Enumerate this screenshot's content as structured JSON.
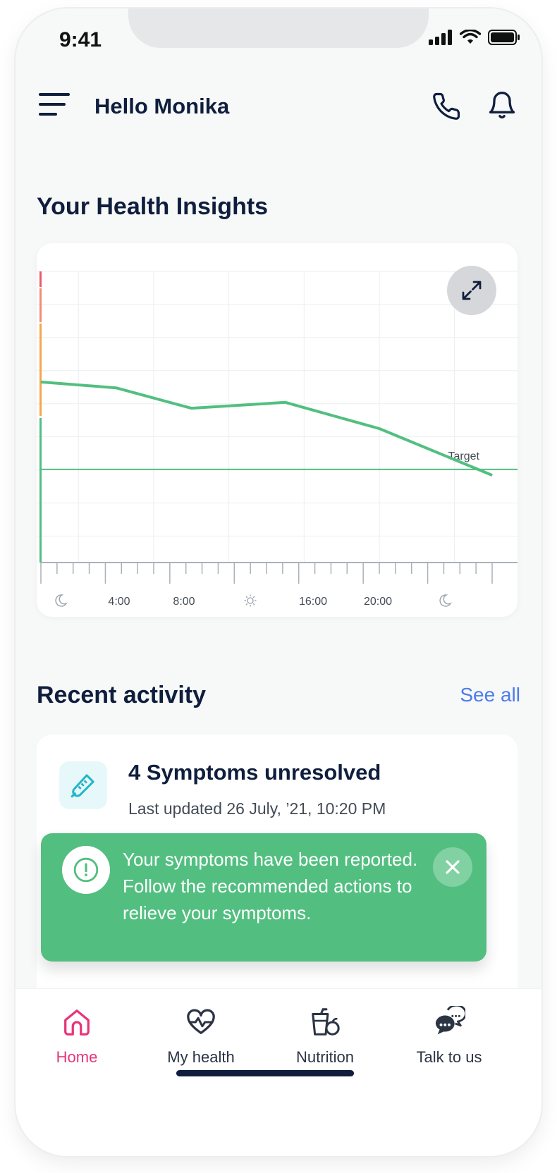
{
  "status_bar": {
    "time": "9:41"
  },
  "header": {
    "greeting": "Hello Monika"
  },
  "insights": {
    "title": "Your Health Insights"
  },
  "chart_data": {
    "type": "line",
    "x_ticks": [
      "moon-icon",
      "4:00",
      "8:00",
      "sun-icon",
      "16:00",
      "20:00",
      "moon-icon"
    ],
    "x_tick_labels": [
      "",
      "4:00",
      "8:00",
      "",
      "16:00",
      "20:00",
      ""
    ],
    "x_range": [
      0,
      24
    ],
    "series": [
      {
        "values": [
          {
            "x": 0,
            "y": 62
          },
          {
            "x": 4,
            "y": 60
          },
          {
            "x": 8,
            "y": 53
          },
          {
            "x": 13,
            "y": 55
          },
          {
            "x": 18,
            "y": 46
          },
          {
            "x": 24,
            "y": 30
          }
        ],
        "color": "#52bf80"
      }
    ],
    "target": {
      "label": "Target",
      "y": 32
    },
    "ylim": [
      0,
      100
    ],
    "grid": true,
    "range_bar_colors": [
      "#ec5a6a",
      "#f28c78",
      "#f5a64b",
      "#52bf80"
    ]
  },
  "recent": {
    "title": "Recent activity",
    "see_all": "See all"
  },
  "activity": {
    "title": "4 Symptoms unresolved",
    "subtitle": "Last updated 26 July, ’21, 10:20 PM"
  },
  "toast": {
    "message": "Your symptoms have been reported. Follow the recommended actions to relieve your symptoms."
  },
  "nav": {
    "items": [
      {
        "label": "Home",
        "icon": "home-icon",
        "active": true
      },
      {
        "label": "My health",
        "icon": "heart-pulse-icon",
        "active": false
      },
      {
        "label": "Nutrition",
        "icon": "nutrition-icon",
        "active": false
      },
      {
        "label": "Talk to us",
        "icon": "chat-icon",
        "active": false
      }
    ]
  },
  "colors": {
    "accent_green": "#52bf80",
    "accent_pink": "#e8347a",
    "link_blue": "#4b7bec",
    "text_dark": "#0f1e3d"
  }
}
